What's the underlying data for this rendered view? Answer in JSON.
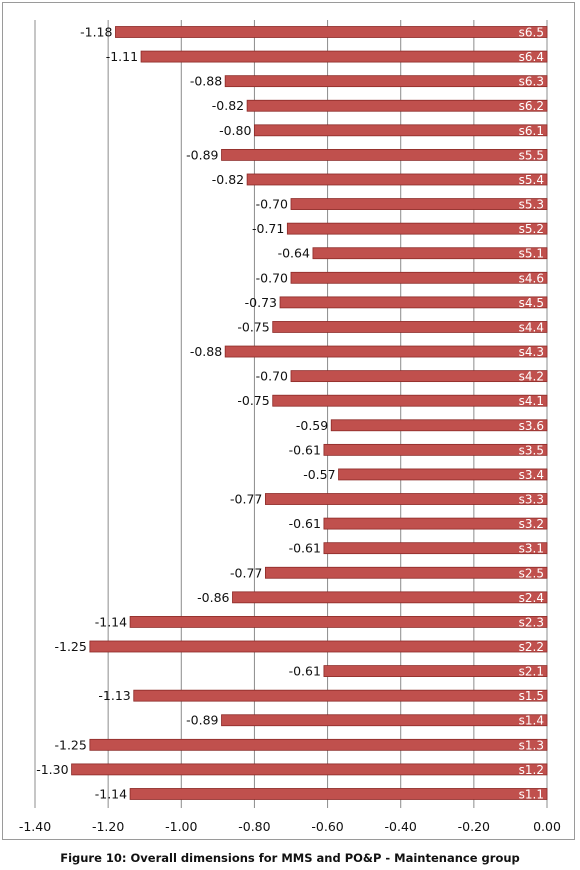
{
  "chart_data": {
    "type": "bar",
    "orientation": "horizontal",
    "categories": [
      "s6.5",
      "s6.4",
      "s6.3",
      "s6.2",
      "s6.1",
      "s5.5",
      "s5.4",
      "s5.3",
      "s5.2",
      "s5.1",
      "s4.6",
      "s4.5",
      "s4.4",
      "s4.3",
      "s4.2",
      "s4.1",
      "s3.6",
      "s3.5",
      "s3.4",
      "s3.3",
      "s3.2",
      "s3.1",
      "s2.5",
      "s2.4",
      "s2.3",
      "s2.2",
      "s2.1",
      "s1.5",
      "s1.4",
      "s1.3",
      "s1.2",
      "s1.1"
    ],
    "values": [
      -1.18,
      -1.11,
      -0.88,
      -0.82,
      -0.8,
      -0.89,
      -0.82,
      -0.7,
      -0.71,
      -0.64,
      -0.7,
      -0.73,
      -0.75,
      -0.88,
      -0.7,
      -0.75,
      -0.59,
      -0.61,
      -0.57,
      -0.77,
      -0.61,
      -0.61,
      -0.77,
      -0.86,
      -1.14,
      -1.25,
      -0.61,
      -1.13,
      -0.89,
      -1.25,
      -1.3,
      -1.14
    ],
    "value_labels": [
      "-1.18",
      "-1.11",
      "-0.88",
      "-0.82",
      "-0.80",
      "-0.89",
      "-0.82",
      "-0.70",
      "-0.71",
      "-0.64",
      "-0.70",
      "-0.73",
      "-0.75",
      "-0.88",
      "-0.70",
      "-0.75",
      "-0.59",
      "-0.61",
      "-0.57",
      "-0.77",
      "-0.61",
      "-0.61",
      "-0.77",
      "-0.86",
      "-1.14",
      "-1.25",
      "-0.61",
      "-1.13",
      "-0.89",
      "-1.25",
      "-1.30",
      "-1.14"
    ],
    "x_ticks": [
      -1.4,
      -1.2,
      -1.0,
      -0.8,
      -0.6,
      -0.4,
      -0.2,
      0.0
    ],
    "x_tick_labels": [
      "-1.40",
      "-1.20",
      "-1.00",
      "-0.80",
      "-0.60",
      "-0.40",
      "-0.20",
      "0.00"
    ],
    "xlim": [
      -1.4,
      0.0
    ],
    "grid": true,
    "legend": "none",
    "bar_color": "#c0504d",
    "title": "",
    "xlabel": "",
    "ylabel": ""
  },
  "caption": "Figure 10: Overall dimensions for MMS and PO&P - Maintenance group"
}
